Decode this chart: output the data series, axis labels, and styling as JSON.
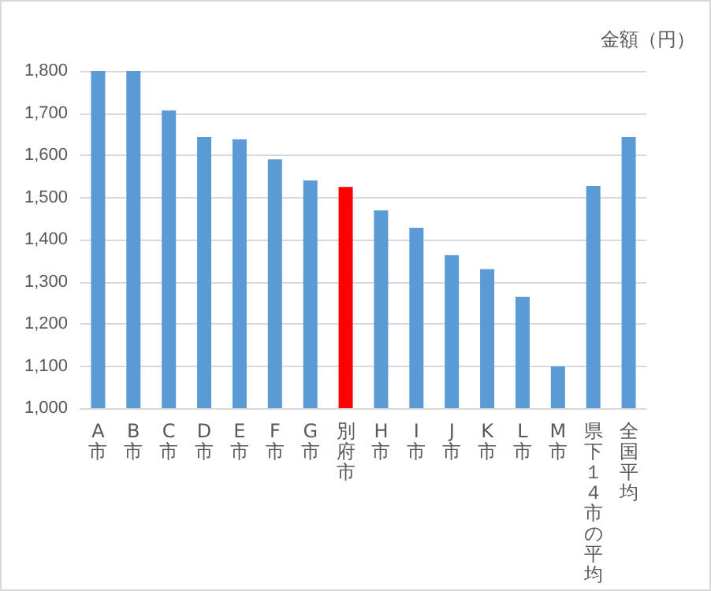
{
  "chart_data": {
    "type": "bar",
    "ylabel": "金額（円）",
    "categories": [
      "A市",
      "B市",
      "C市",
      "D市",
      "E市",
      "F市",
      "G市",
      "別府市",
      "H市",
      "I市",
      "J市",
      "K市",
      "L市",
      "M市",
      "県下１４市の平均",
      "全国平均"
    ],
    "values": [
      1800,
      1800,
      1706,
      1643,
      1638,
      1590,
      1540,
      1525,
      1469,
      1428,
      1363,
      1330,
      1264,
      1099,
      1527,
      1643
    ],
    "colors": [
      "#5b9bd5",
      "#5b9bd5",
      "#5b9bd5",
      "#5b9bd5",
      "#5b9bd5",
      "#5b9bd5",
      "#5b9bd5",
      "#ff0000",
      "#5b9bd5",
      "#5b9bd5",
      "#5b9bd5",
      "#5b9bd5",
      "#5b9bd5",
      "#5b9bd5",
      "#5b9bd5",
      "#5b9bd5"
    ],
    "ylim": [
      1000,
      1800
    ],
    "yticks": [
      {
        "value": 1000,
        "label": "1,000"
      },
      {
        "value": 1100,
        "label": "1,100"
      },
      {
        "value": 1200,
        "label": "1,200"
      },
      {
        "value": 1300,
        "label": "1,300"
      },
      {
        "value": 1400,
        "label": "1,400"
      },
      {
        "value": 1500,
        "label": "1,500"
      },
      {
        "value": 1600,
        "label": "1,600"
      },
      {
        "value": 1700,
        "label": "1,700"
      },
      {
        "value": 1800,
        "label": "1,800"
      }
    ],
    "grid": "y"
  }
}
